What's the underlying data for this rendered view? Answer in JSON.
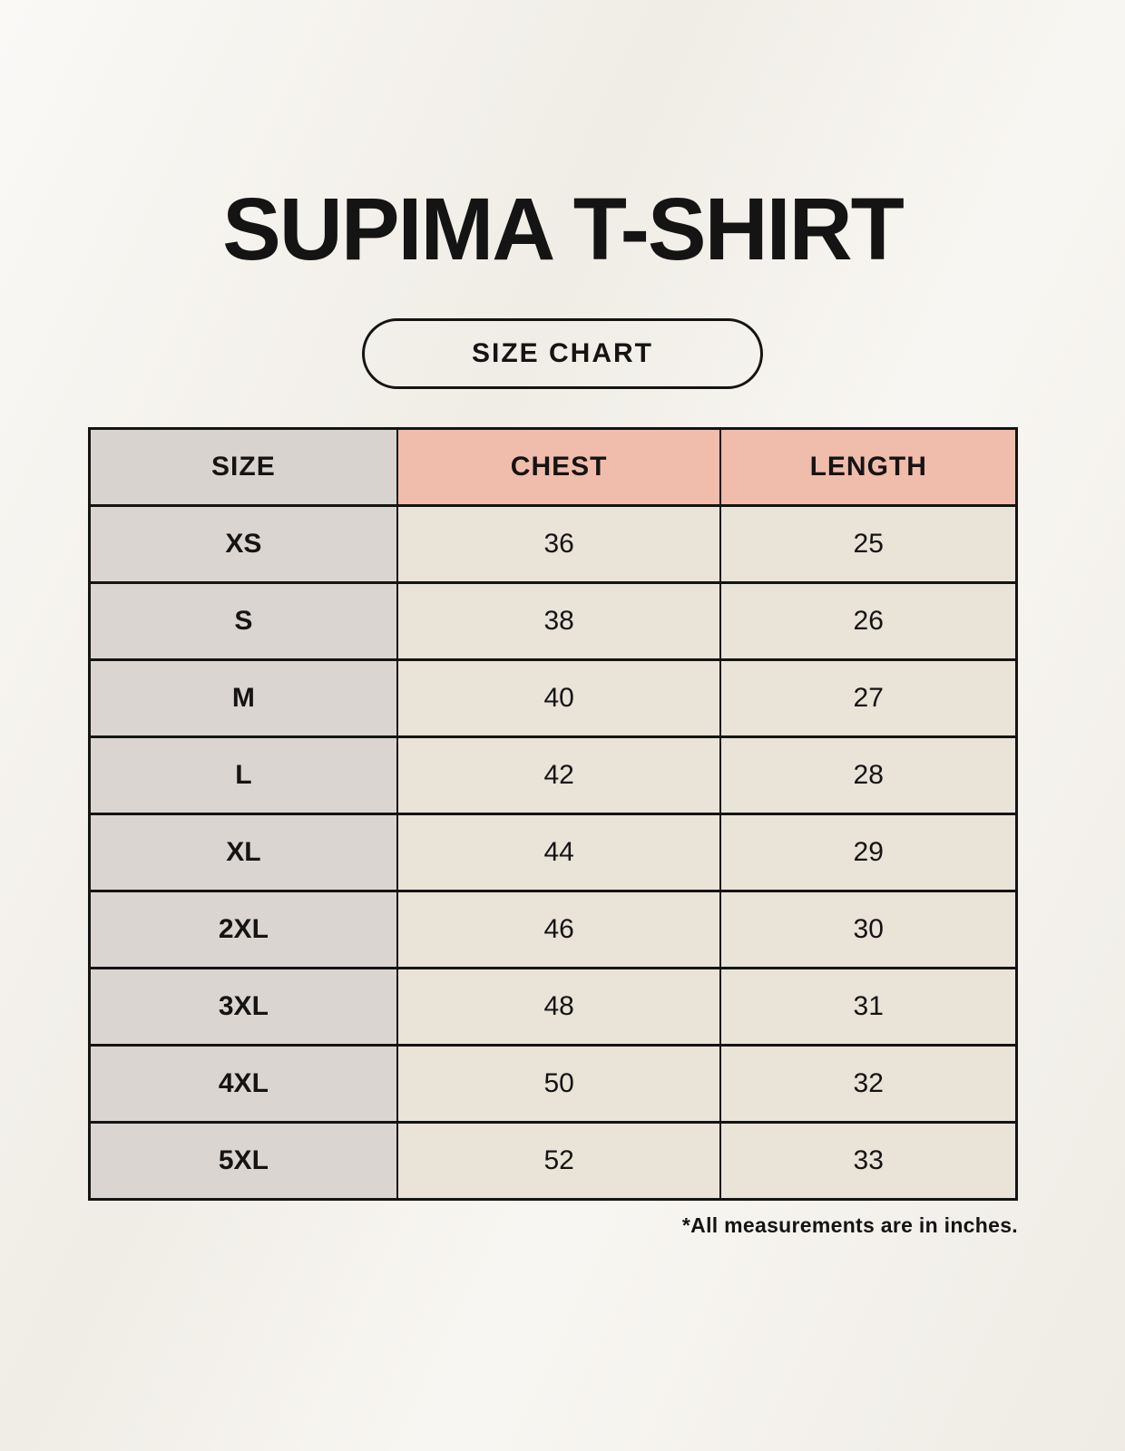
{
  "header": {
    "title": "SUPIMA T-SHIRT",
    "badge_label": "SIZE CHART"
  },
  "table": {
    "columns": [
      "SIZE",
      "CHEST",
      "LENGTH"
    ],
    "rows": [
      [
        "XS",
        "36",
        "25"
      ],
      [
        "S",
        "38",
        "26"
      ],
      [
        "M",
        "40",
        "27"
      ],
      [
        "L",
        "42",
        "28"
      ],
      [
        "XL",
        "44",
        "29"
      ],
      [
        "2XL",
        "46",
        "30"
      ],
      [
        "3XL",
        "48",
        "31"
      ],
      [
        "4XL",
        "50",
        "32"
      ],
      [
        "5XL",
        "52",
        "33"
      ]
    ]
  },
  "footnote": "*All measurements are in inches.",
  "colors": {
    "page_background": "#f5f2ec",
    "size_header_bg": "#d9d3cf",
    "measure_header_bg": "#f0bcab",
    "size_column_bg": "#dbd5d1",
    "value_cell_bg": "#e9e3d8",
    "border": "#141414",
    "text": "#141414"
  },
  "chart_data": {
    "type": "table",
    "title": "SUPIMA T-SHIRT",
    "subtitle": "SIZE CHART",
    "columns": [
      "SIZE",
      "CHEST",
      "LENGTH"
    ],
    "rows": [
      {
        "size": "XS",
        "chest": 36,
        "length": 25
      },
      {
        "size": "S",
        "chest": 38,
        "length": 26
      },
      {
        "size": "M",
        "chest": 40,
        "length": 27
      },
      {
        "size": "L",
        "chest": 42,
        "length": 28
      },
      {
        "size": "XL",
        "chest": 44,
        "length": 29
      },
      {
        "size": "2XL",
        "chest": 46,
        "length": 30
      },
      {
        "size": "3XL",
        "chest": 48,
        "length": 31
      },
      {
        "size": "4XL",
        "chest": 50,
        "length": 32
      },
      {
        "size": "5XL",
        "chest": 52,
        "length": 33
      }
    ],
    "units": "inches",
    "note": "*All measurements are in inches."
  }
}
